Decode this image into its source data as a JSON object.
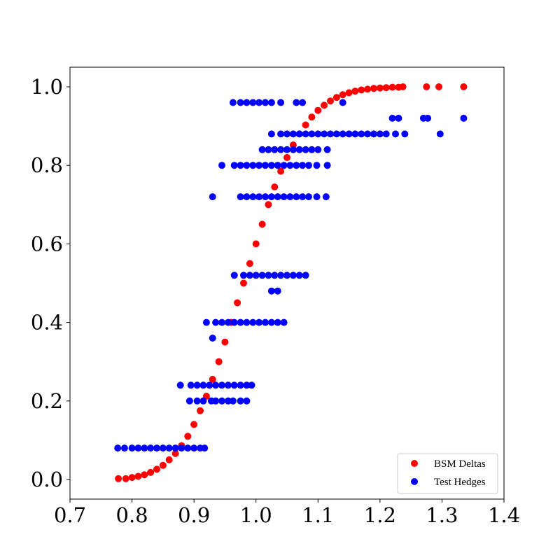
{
  "chart_data": {
    "type": "scatter",
    "title": "",
    "xlabel": "",
    "ylabel": "",
    "xlim": [
      0.7,
      1.4
    ],
    "ylim": [
      -0.05,
      1.05
    ],
    "xticks": [
      0.7,
      0.8,
      0.9,
      1.0,
      1.1,
      1.2,
      1.3,
      1.4
    ],
    "xtick_labels": [
      "0.7",
      "0.8",
      "0.9",
      "1.0",
      "1.1",
      "1.2",
      "1.3",
      "1.4"
    ],
    "yticks": [
      0.0,
      0.2,
      0.4,
      0.6,
      0.8,
      1.0
    ],
    "ytick_labels": [
      "0.0",
      "0.2",
      "0.4",
      "0.6",
      "0.8",
      "1.0"
    ],
    "grid": false,
    "legend_position": "lower-right",
    "series": [
      {
        "name": "BSM Deltas",
        "color": "#ff0000",
        "points": [
          [
            0.778,
            0.002
          ],
          [
            0.79,
            0.002
          ],
          [
            0.8,
            0.005
          ],
          [
            0.81,
            0.008
          ],
          [
            0.82,
            0.012
          ],
          [
            0.83,
            0.018
          ],
          [
            0.84,
            0.026
          ],
          [
            0.85,
            0.036
          ],
          [
            0.86,
            0.05
          ],
          [
            0.87,
            0.066
          ],
          [
            0.88,
            0.086
          ],
          [
            0.89,
            0.11
          ],
          [
            0.9,
            0.14
          ],
          [
            0.91,
            0.175
          ],
          [
            0.92,
            0.212
          ],
          [
            0.93,
            0.255
          ],
          [
            0.94,
            0.3
          ],
          [
            0.95,
            0.35
          ],
          [
            0.96,
            0.4
          ],
          [
            0.97,
            0.45
          ],
          [
            0.98,
            0.5
          ],
          [
            0.99,
            0.55
          ],
          [
            1.0,
            0.6
          ],
          [
            1.01,
            0.65
          ],
          [
            1.02,
            0.7
          ],
          [
            1.03,
            0.745
          ],
          [
            1.04,
            0.785
          ],
          [
            1.05,
            0.82
          ],
          [
            1.06,
            0.852
          ],
          [
            1.07,
            0.88
          ],
          [
            1.08,
            0.903
          ],
          [
            1.09,
            0.923
          ],
          [
            1.1,
            0.94
          ],
          [
            1.11,
            0.953
          ],
          [
            1.12,
            0.964
          ],
          [
            1.13,
            0.973
          ],
          [
            1.14,
            0.98
          ],
          [
            1.15,
            0.985
          ],
          [
            1.16,
            0.989
          ],
          [
            1.17,
            0.992
          ],
          [
            1.18,
            0.994
          ],
          [
            1.19,
            0.996
          ],
          [
            1.2,
            0.997
          ],
          [
            1.21,
            0.998
          ],
          [
            1.22,
            0.999
          ],
          [
            1.23,
            0.999
          ],
          [
            1.237,
            1.0
          ],
          [
            1.275,
            1.0
          ],
          [
            1.295,
            1.0
          ],
          [
            1.335,
            1.0
          ]
        ]
      },
      {
        "name": "Test Hedges",
        "color": "#0000ff",
        "points": [
          [
            0.777,
            0.08
          ],
          [
            0.788,
            0.08
          ],
          [
            0.8,
            0.08
          ],
          [
            0.81,
            0.08
          ],
          [
            0.82,
            0.08
          ],
          [
            0.83,
            0.08
          ],
          [
            0.84,
            0.08
          ],
          [
            0.85,
            0.08
          ],
          [
            0.86,
            0.08
          ],
          [
            0.87,
            0.08
          ],
          [
            0.88,
            0.08
          ],
          [
            0.89,
            0.08
          ],
          [
            0.9,
            0.08
          ],
          [
            0.91,
            0.08
          ],
          [
            0.917,
            0.08
          ],
          [
            0.928,
            0.2
          ],
          [
            0.935,
            0.2
          ],
          [
            0.945,
            0.2
          ],
          [
            0.955,
            0.2
          ],
          [
            0.963,
            0.2
          ],
          [
            0.975,
            0.2
          ],
          [
            0.985,
            0.2
          ],
          [
            0.893,
            0.2
          ],
          [
            0.905,
            0.2
          ],
          [
            0.915,
            0.2
          ],
          [
            0.878,
            0.24
          ],
          [
            0.895,
            0.24
          ],
          [
            0.905,
            0.24
          ],
          [
            0.915,
            0.24
          ],
          [
            0.925,
            0.24
          ],
          [
            0.935,
            0.24
          ],
          [
            0.945,
            0.24
          ],
          [
            0.955,
            0.24
          ],
          [
            0.965,
            0.24
          ],
          [
            0.975,
            0.24
          ],
          [
            0.985,
            0.24
          ],
          [
            0.993,
            0.24
          ],
          [
            0.93,
            0.36
          ],
          [
            0.92,
            0.4
          ],
          [
            0.935,
            0.4
          ],
          [
            0.945,
            0.4
          ],
          [
            0.955,
            0.4
          ],
          [
            0.965,
            0.4
          ],
          [
            0.975,
            0.4
          ],
          [
            0.985,
            0.4
          ],
          [
            0.995,
            0.4
          ],
          [
            1.005,
            0.4
          ],
          [
            1.015,
            0.4
          ],
          [
            1.025,
            0.4
          ],
          [
            1.035,
            0.4
          ],
          [
            1.045,
            0.4
          ],
          [
            1.025,
            0.48
          ],
          [
            1.035,
            0.48
          ],
          [
            0.965,
            0.52
          ],
          [
            0.98,
            0.52
          ],
          [
            0.99,
            0.52
          ],
          [
            1.0,
            0.52
          ],
          [
            1.01,
            0.52
          ],
          [
            1.02,
            0.52
          ],
          [
            1.03,
            0.52
          ],
          [
            1.04,
            0.52
          ],
          [
            1.05,
            0.52
          ],
          [
            1.06,
            0.52
          ],
          [
            1.07,
            0.52
          ],
          [
            1.08,
            0.52
          ],
          [
            0.93,
            0.72
          ],
          [
            0.975,
            0.72
          ],
          [
            0.985,
            0.72
          ],
          [
            0.995,
            0.72
          ],
          [
            1.005,
            0.72
          ],
          [
            1.015,
            0.72
          ],
          [
            1.025,
            0.72
          ],
          [
            1.035,
            0.72
          ],
          [
            1.045,
            0.72
          ],
          [
            1.055,
            0.72
          ],
          [
            1.065,
            0.72
          ],
          [
            1.075,
            0.72
          ],
          [
            1.085,
            0.72
          ],
          [
            1.098,
            0.72
          ],
          [
            1.113,
            0.72
          ],
          [
            0.945,
            0.8
          ],
          [
            0.965,
            0.8
          ],
          [
            0.975,
            0.8
          ],
          [
            0.985,
            0.8
          ],
          [
            0.995,
            0.8
          ],
          [
            1.005,
            0.8
          ],
          [
            1.015,
            0.8
          ],
          [
            1.025,
            0.8
          ],
          [
            1.035,
            0.8
          ],
          [
            1.045,
            0.8
          ],
          [
            1.055,
            0.8
          ],
          [
            1.065,
            0.8
          ],
          [
            1.075,
            0.8
          ],
          [
            1.085,
            0.8
          ],
          [
            1.098,
            0.8
          ],
          [
            1.115,
            0.8
          ],
          [
            1.01,
            0.84
          ],
          [
            1.02,
            0.84
          ],
          [
            1.03,
            0.84
          ],
          [
            1.04,
            0.84
          ],
          [
            1.05,
            0.84
          ],
          [
            1.06,
            0.84
          ],
          [
            1.07,
            0.84
          ],
          [
            1.08,
            0.84
          ],
          [
            1.09,
            0.84
          ],
          [
            1.1,
            0.84
          ],
          [
            1.115,
            0.84
          ],
          [
            1.025,
            0.88
          ],
          [
            1.04,
            0.88
          ],
          [
            1.05,
            0.88
          ],
          [
            1.06,
            0.88
          ],
          [
            1.07,
            0.88
          ],
          [
            1.08,
            0.88
          ],
          [
            1.09,
            0.88
          ],
          [
            1.1,
            0.88
          ],
          [
            1.11,
            0.88
          ],
          [
            1.12,
            0.88
          ],
          [
            1.13,
            0.88
          ],
          [
            1.14,
            0.88
          ],
          [
            1.15,
            0.88
          ],
          [
            1.16,
            0.88
          ],
          [
            1.17,
            0.88
          ],
          [
            1.18,
            0.88
          ],
          [
            1.19,
            0.88
          ],
          [
            1.2,
            0.88
          ],
          [
            1.21,
            0.88
          ],
          [
            1.225,
            0.88
          ],
          [
            1.24,
            0.88
          ],
          [
            1.297,
            0.88
          ],
          [
            1.22,
            0.92
          ],
          [
            1.23,
            0.92
          ],
          [
            1.27,
            0.92
          ],
          [
            1.277,
            0.92
          ],
          [
            1.335,
            0.92
          ],
          [
            0.963,
            0.96
          ],
          [
            0.975,
            0.96
          ],
          [
            0.985,
            0.96
          ],
          [
            0.995,
            0.96
          ],
          [
            1.005,
            0.96
          ],
          [
            1.015,
            0.96
          ],
          [
            1.025,
            0.96
          ],
          [
            1.04,
            0.96
          ],
          [
            1.065,
            0.96
          ],
          [
            1.075,
            0.96
          ],
          [
            1.14,
            0.96
          ]
        ]
      }
    ]
  }
}
